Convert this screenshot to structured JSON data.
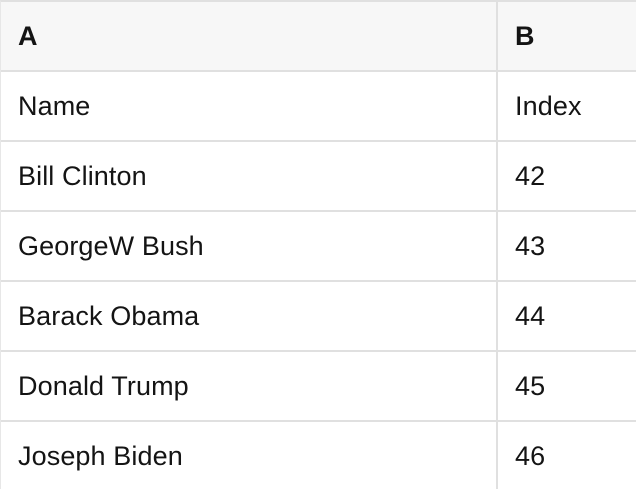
{
  "table": {
    "column_headers": [
      {
        "label": "A"
      },
      {
        "label": "B"
      }
    ],
    "rows": [
      {
        "a": "Name",
        "b": "Index"
      },
      {
        "a": "Bill Clinton",
        "b": "42"
      },
      {
        "a": "GeorgeW Bush",
        "b": "43"
      },
      {
        "a": "Barack Obama",
        "b": "44"
      },
      {
        "a": "Donald Trump",
        "b": "45"
      },
      {
        "a": "Joseph Biden",
        "b": "46"
      }
    ],
    "colors": {
      "header_background": "#f7f7f7",
      "grid_border": "#e0e0e0",
      "row_background": "#ffffff",
      "text": "#141414"
    }
  }
}
